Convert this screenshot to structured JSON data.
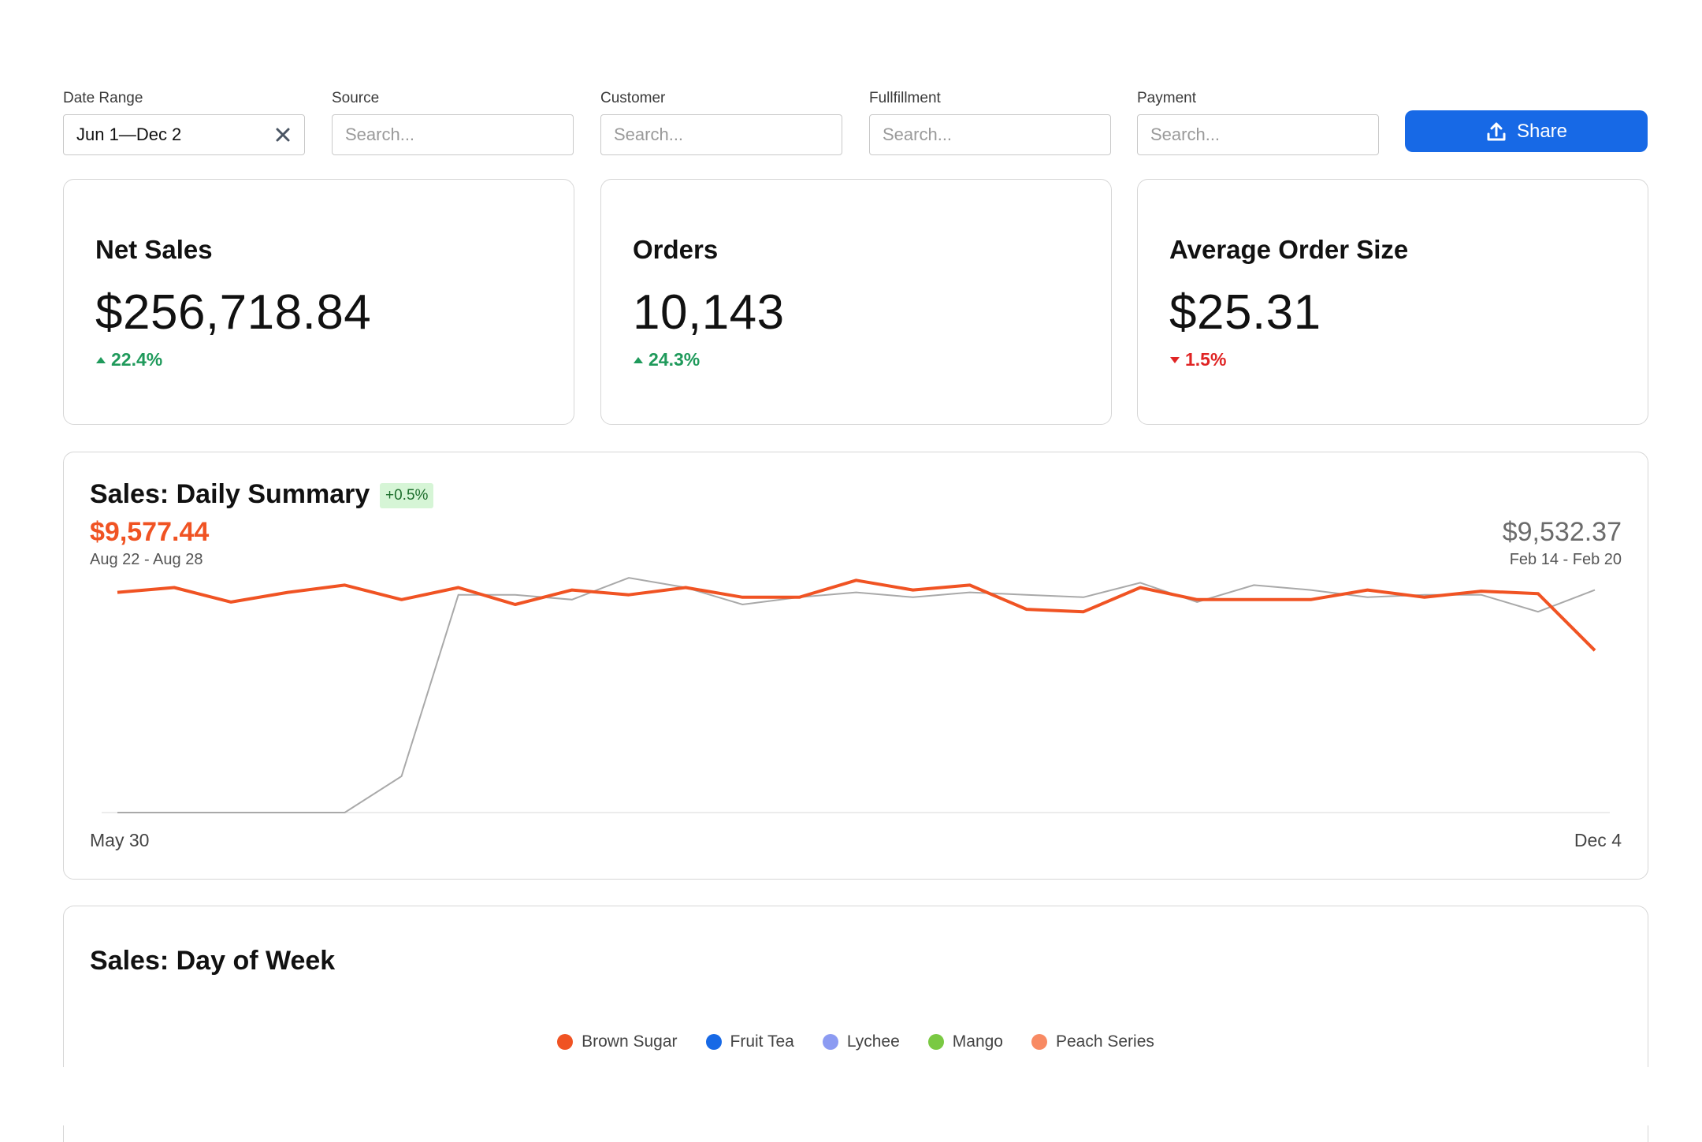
{
  "filters": {
    "date_range": {
      "label": "Date Range",
      "value": "Jun 1—Dec 2"
    },
    "source": {
      "label": "Source",
      "placeholder": "Search..."
    },
    "customer": {
      "label": "Customer",
      "placeholder": "Search..."
    },
    "fulfillment": {
      "label": "Fullfillment",
      "placeholder": "Search..."
    },
    "payment": {
      "label": "Payment",
      "placeholder": "Search..."
    }
  },
  "share_label": "Share",
  "kpis": [
    {
      "title": "Net Sales",
      "value": "$256,718.84",
      "delta": "22.4%",
      "direction": "up"
    },
    {
      "title": "Orders",
      "value": "10,143",
      "delta": "24.3%",
      "direction": "up"
    },
    {
      "title": "Average Order Size",
      "value": "$25.31",
      "delta": "1.5%",
      "direction": "down"
    }
  ],
  "daily_summary": {
    "title": "Sales: Daily Summary",
    "badge": "+0.5%",
    "current_value": "$9,577.44",
    "current_range": "Aug 22 - Aug 28",
    "previous_value": "$9,532.37",
    "previous_range": "Feb 14 - Feb 20",
    "axis_start": "May 30",
    "axis_end": "Dec 4"
  },
  "chart_data": {
    "type": "line",
    "grid": false,
    "ylim": [
      0,
      10000
    ],
    "series": [
      {
        "color": "#f05323",
        "values": [
          9100,
          9300,
          8700,
          9100,
          9400,
          8800,
          9300,
          8600,
          9200,
          9000,
          9300,
          8900,
          8900,
          9600,
          9200,
          9400,
          8400,
          8300,
          9300,
          8800,
          8800,
          8800,
          9200,
          8900,
          9150,
          9050,
          6700
        ]
      },
      {
        "color": "#a9a9a9",
        "values": [
          0,
          0,
          0,
          0,
          0,
          1500,
          9000,
          9000,
          8800,
          9700,
          9300,
          8600,
          8900,
          9100,
          8900,
          9100,
          9000,
          8900,
          9500,
          8700,
          9400,
          9200,
          8900,
          9000,
          9000,
          8300,
          9200
        ]
      }
    ]
  },
  "day_of_week": {
    "title": "Sales: Day of Week",
    "legend": [
      {
        "label": "Brown Sugar",
        "color": "#f05323"
      },
      {
        "label": "Fruit Tea",
        "color": "#1769e6"
      },
      {
        "label": "Lychee",
        "color": "#8c9bf2"
      },
      {
        "label": "Mango",
        "color": "#7ac943"
      },
      {
        "label": "Peach Series",
        "color": "#f88a63"
      }
    ]
  },
  "colors": {
    "accent": "#1769e6",
    "up": "#1f9a5b",
    "down": "#e02424",
    "series_current": "#f05323",
    "series_previous": "#a9a9a9"
  },
  "icons": [
    "close-icon",
    "upload-icon",
    "triangle-up-icon",
    "triangle-down-icon"
  ]
}
